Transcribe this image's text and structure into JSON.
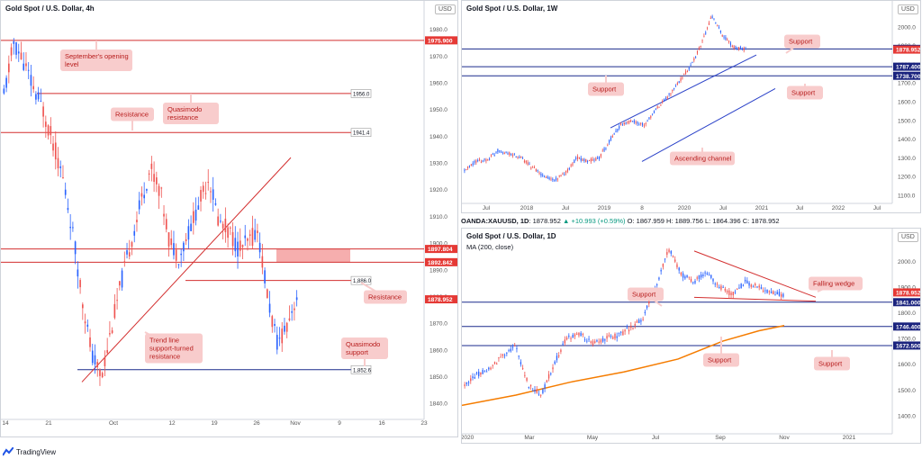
{
  "colors": {
    "up": "#2962ff",
    "down": "#ef5350",
    "support_line": "#1a2a8c",
    "resistance_line": "#d32f2f",
    "zone": "#f28b8b",
    "ma": "#f57c00",
    "callout_fill": "#f8cccc",
    "callout_text": "#b71c1c",
    "price_tag": "#e53935",
    "blue_tag": "#1a237e"
  },
  "footer": {
    "brand": "TradingView"
  },
  "ohlc_bar": {
    "symbol": "OANDA:XAUUSD, 1D",
    "value": "1878.952",
    "change": "▲ +10.993 (+0.59%)",
    "o": "O: 1867.959",
    "h": "H: 1889.756",
    "l": "L: 1864.396",
    "c": "C: 1878.952"
  },
  "chart_data": [
    {
      "id": "h4",
      "type": "candlestick",
      "title": "Gold Spot / U.S. Dollar, 4h",
      "currency": "USD",
      "ylim": [
        1835,
        1990
      ],
      "y_ticks": [
        1840,
        1850,
        1860,
        1870,
        1880,
        1890,
        1900,
        1910,
        1920,
        1930,
        1940,
        1950,
        1960,
        1970,
        1980
      ],
      "x_labels": [
        "14",
        "21",
        "Oct",
        "12",
        "19",
        "26",
        "Nov",
        "9",
        "16",
        "23"
      ],
      "price_tags": [
        {
          "value": 1975.9,
          "label": "1975.900",
          "style": "red"
        },
        {
          "value": 1897.804,
          "label": "1897.804",
          "style": "red"
        },
        {
          "value": 1892.842,
          "label": "1892.842",
          "style": "red"
        },
        {
          "value": 1878.952,
          "label": "1878.952",
          "style": "red"
        }
      ],
      "level_labels": [
        {
          "value": 1956.0,
          "label": "1956.0"
        },
        {
          "value": 1941.4,
          "label": "1941.4"
        },
        {
          "value": 1886.0,
          "label": "1,886.0"
        },
        {
          "value": 1852.6,
          "label": "1,852.6"
        }
      ],
      "callouts": [
        {
          "text": [
            "September's opening",
            "level"
          ]
        },
        {
          "text": [
            "Quasimodo",
            "resistance"
          ]
        },
        {
          "text": [
            "Resistance"
          ]
        },
        {
          "text": [
            "Resistance"
          ]
        },
        {
          "text": [
            "Trend line",
            "support-turned",
            "resistance"
          ]
        },
        {
          "text": [
            "Quasimodo",
            "support"
          ]
        }
      ],
      "zone": [
        1892.842,
        1897.804
      ],
      "trendline": {
        "from": 1848,
        "to": 1932
      }
    },
    {
      "id": "w1",
      "type": "candlestick",
      "title": "Gold Spot / U.S. Dollar, 1W",
      "currency": "USD",
      "ylim": [
        1070,
        2130
      ],
      "y_ticks": [
        1100,
        1200,
        1300,
        1400,
        1500,
        1600,
        1700,
        1800,
        1900,
        2000,
        2100
      ],
      "x_labels": [
        "Jul",
        "2018",
        "Jul",
        "2019",
        "8",
        "2020",
        "Jul",
        "2021",
        "Jul",
        "2022",
        "Jul"
      ],
      "price_tags": [
        {
          "value": 1882.7,
          "label": "1882.700",
          "style": "blue"
        },
        {
          "value": 1878.952,
          "label": "1878.952",
          "style": "red"
        },
        {
          "value": 1787.4,
          "label": "1787.400",
          "style": "blue"
        },
        {
          "value": 1738.7,
          "label": "1738.700",
          "style": "blue"
        }
      ],
      "callouts": [
        {
          "text": [
            "Support"
          ]
        },
        {
          "text": [
            "Support"
          ]
        },
        {
          "text": [
            "Support"
          ]
        },
        {
          "text": [
            "Ascending channel"
          ]
        }
      ]
    },
    {
      "id": "d1",
      "type": "candlestick",
      "title": "Gold Spot / U.S. Dollar, 1D",
      "subtitle": "MA (200, close)",
      "currency": "USD",
      "ylim": [
        1340,
        2120
      ],
      "y_ticks": [
        1400,
        1500,
        1600,
        1700,
        1800,
        1900,
        2000,
        2100
      ],
      "x_labels": [
        "2020",
        "Mar",
        "May",
        "Jul",
        "Sep",
        "Nov",
        "2021"
      ],
      "price_tags": [
        {
          "value": 1878.952,
          "label": "1878.952",
          "style": "red"
        },
        {
          "value": 1841.0,
          "label": "1841.000",
          "style": "blue"
        },
        {
          "value": 1746.4,
          "label": "1746.400",
          "style": "blue"
        },
        {
          "value": 1672.5,
          "label": "1672.500",
          "style": "blue"
        }
      ],
      "callouts": [
        {
          "text": [
            "Support"
          ]
        },
        {
          "text": [
            "Falling wedge"
          ]
        },
        {
          "text": [
            "Support"
          ]
        },
        {
          "text": [
            "Support"
          ]
        }
      ]
    }
  ]
}
